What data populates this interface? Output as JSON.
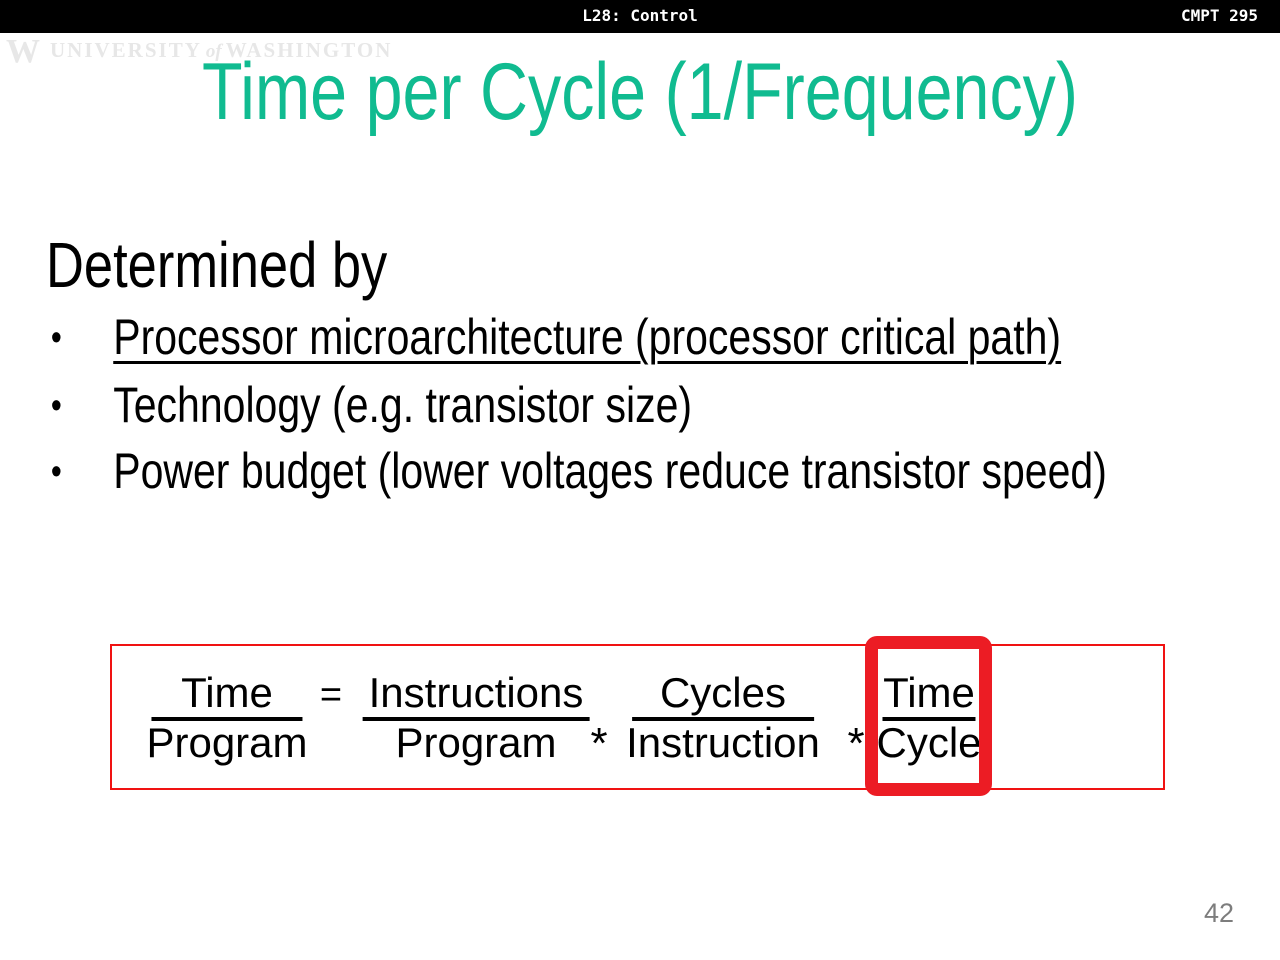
{
  "header": {
    "lecture_label": "L28: Control",
    "course_label": "CMPT 295",
    "bg_color": "#000000",
    "text_color": "#ffffff"
  },
  "watermark": {
    "logo": "W",
    "university": "UNIVERSITY",
    "of": "of",
    "washington": "WASHINGTON",
    "color": "#e7e7e7"
  },
  "title": {
    "text": "Time per Cycle (1/Frequency)",
    "color": "#10bb90"
  },
  "heading": "Determined by",
  "list": {
    "bullet_char": "•",
    "items": [
      {
        "text": "Processor microarchitecture (processor critical path)",
        "underlined": true
      },
      {
        "text": "Technology (e.g. transistor size)",
        "underlined": false
      },
      {
        "text": "Power budget (lower voltages reduce transistor speed)",
        "underlined": false
      }
    ]
  },
  "formula": {
    "box_border_color": "#f01212",
    "highlight_color": "#ec1c24",
    "parts": [
      {
        "type": "fraction",
        "num": "Time",
        "den": "Program",
        "highlighted": false
      },
      {
        "type": "operator",
        "text": "="
      },
      {
        "type": "fraction",
        "num": "Instructions",
        "den": "Program",
        "highlighted": false
      },
      {
        "type": "operator",
        "text": "*"
      },
      {
        "type": "fraction",
        "num": "Cycles",
        "den": "Instruction",
        "highlighted": false
      },
      {
        "type": "operator",
        "text": "*"
      },
      {
        "type": "fraction",
        "num": "Time",
        "den": "Cycle",
        "highlighted": true
      }
    ]
  },
  "page_number": "42",
  "colors": {
    "title_teal": "#10bb90",
    "thin_box_red": "#f01212",
    "highlight_red": "#ec1c24",
    "page_number_gray": "#7d7d7d",
    "topbar_black": "#000000"
  }
}
